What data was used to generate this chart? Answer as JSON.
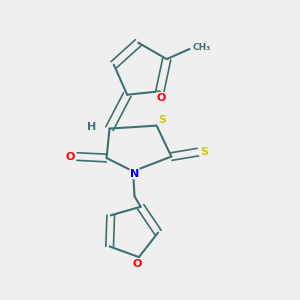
{
  "bg_color": "#efefef",
  "bond_color": "#3d7070",
  "atom_colors": {
    "O": "#ff0000",
    "N": "#0000ff",
    "S": "#cccc00",
    "H": "#3d7070"
  },
  "figsize": [
    3.0,
    3.0
  ],
  "dpi": 100
}
